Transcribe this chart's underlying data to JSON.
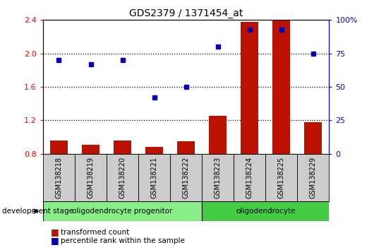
{
  "title": "GDS2379 / 1371454_at",
  "samples": [
    "GSM138218",
    "GSM138219",
    "GSM138220",
    "GSM138221",
    "GSM138222",
    "GSM138223",
    "GSM138224",
    "GSM138225",
    "GSM138229"
  ],
  "red_values": [
    0.96,
    0.91,
    0.96,
    0.88,
    0.95,
    1.25,
    2.38,
    2.4,
    1.18
  ],
  "blue_percentile": [
    70,
    67,
    70,
    42,
    50,
    80,
    93,
    93,
    75
  ],
  "ylim_left": [
    0.8,
    2.4
  ],
  "ylim_right": [
    0,
    100
  ],
  "yticks_left": [
    0.8,
    1.2,
    1.6,
    2.0,
    2.4
  ],
  "yticks_right": [
    0,
    25,
    50,
    75,
    100
  ],
  "ytick_labels_right": [
    "0",
    "25",
    "50",
    "75",
    "100%"
  ],
  "hlines": [
    1.2,
    1.6,
    2.0
  ],
  "group1_label": "oligodendrocyte progenitor",
  "group2_label": "oligodendrocyte",
  "group1_count": 5,
  "group2_count": 4,
  "legend1": "transformed count",
  "legend2": "percentile rank within the sample",
  "dev_stage_label": "development stage",
  "bar_color": "#bb1100",
  "dot_color": "#0000bb",
  "group1_bg": "#88ee88",
  "group2_bg": "#44cc44",
  "sample_label_bg": "#cccccc",
  "bar_width": 0.55,
  "dot_size": 5
}
